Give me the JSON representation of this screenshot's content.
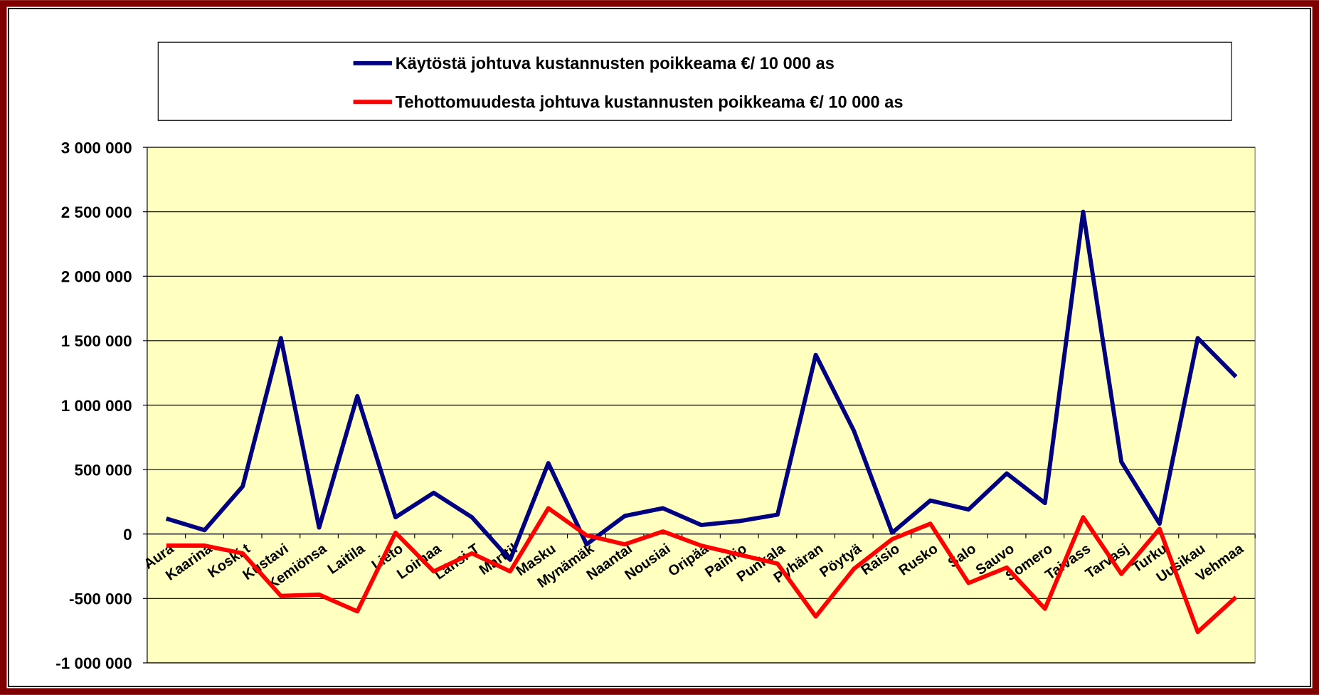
{
  "chart_data": {
    "type": "line",
    "categories": [
      "Aura",
      "Kaarina",
      "Koski t",
      "Kustavi",
      "Kemiönsa",
      "Laitila",
      "Lieto",
      "Loimaa",
      "Länsi-T",
      "Marttil",
      "Masku",
      "Mynämäk",
      "Naantal",
      "Nousiai",
      "Oripää",
      "Paimio",
      "Punkala",
      "Pyhäran",
      "Pöytyä",
      "Raisio",
      "Rusko",
      "Salo",
      "Sauvo",
      "Somero",
      "Taivass",
      "Tarvasj",
      "Turku",
      "Uusikau",
      "Vehmaa"
    ],
    "series": [
      {
        "name": "Käytöstä johtuva kustannusten poikkeama  €/ 10 000 as",
        "color": "#000080",
        "values": [
          120000,
          30000,
          370000,
          1520000,
          50000,
          1070000,
          130000,
          320000,
          130000,
          -200000,
          550000,
          -80000,
          140000,
          200000,
          70000,
          100000,
          150000,
          1390000,
          800000,
          10000,
          260000,
          190000,
          470000,
          240000,
          2500000,
          560000,
          80000,
          1520000,
          1220000
        ]
      },
      {
        "name": "Tehottomuudesta johtuva kustannusten poikkeama  €/ 10 000 as",
        "color": "#ff0000",
        "values": [
          -90000,
          -90000,
          -150000,
          -480000,
          -470000,
          -600000,
          10000,
          -290000,
          -150000,
          -290000,
          200000,
          -10000,
          -80000,
          20000,
          -90000,
          -160000,
          -230000,
          -640000,
          -270000,
          -40000,
          80000,
          -380000,
          -260000,
          -580000,
          130000,
          -310000,
          40000,
          -760000,
          -490000
        ]
      }
    ],
    "ylim": [
      -1000000,
      3000000
    ],
    "yticks": [
      {
        "value": -1000000,
        "label": "-1 000 000"
      },
      {
        "value": -500000,
        "label": "-500 000"
      },
      0,
      {
        "value": 500000,
        "label": "500 000"
      },
      {
        "value": 1000000,
        "label": "1 000 000"
      },
      {
        "value": 1500000,
        "label": "1 500 000"
      },
      {
        "value": 2000000,
        "label": "2 000 000"
      },
      {
        "value": 2500000,
        "label": "2 500 000"
      },
      {
        "value": 3000000,
        "label": "3 000 000"
      }
    ],
    "grid": true,
    "legend": "top",
    "plot_background": "#ffffc0"
  }
}
